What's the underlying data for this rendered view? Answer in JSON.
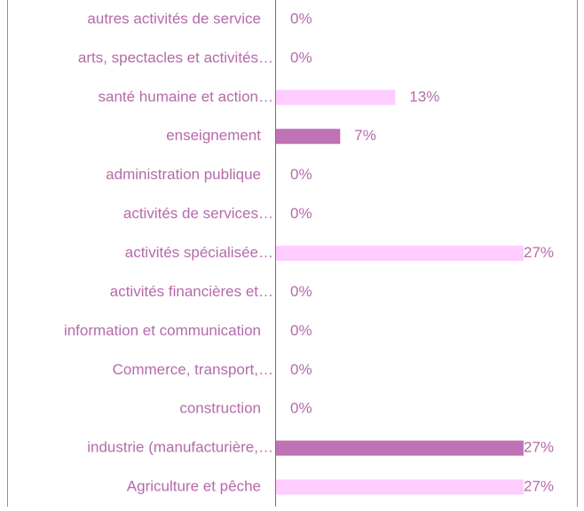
{
  "chart_data": {
    "type": "bar",
    "orientation": "horizontal",
    "categories": [
      "autres activités de service",
      "arts, spectacles et activités…",
      "santé humaine et action…",
      "enseignement",
      "administration publique",
      "activités de services…",
      "activités spécialisée…",
      "activités financières et…",
      "information et communication",
      "Commerce, transport,…",
      "construction",
      "industrie (manufacturière,…",
      "Agriculture et pêche"
    ],
    "values": [
      0,
      0,
      13,
      7,
      0,
      0,
      27,
      0,
      0,
      0,
      0,
      27,
      27
    ],
    "value_labels": [
      "0%",
      "0%",
      "13%",
      "7%",
      "0%",
      "0%",
      "27%",
      "0%",
      "0%",
      "0%",
      "0%",
      "27%",
      "27%"
    ],
    "colors": [
      "#ffccff",
      "#bf73b5",
      "#ffccff",
      "#bf73b5",
      "#ffccff",
      "#bf73b5",
      "#ffccff",
      "#bf73b5",
      "#ffccff",
      "#bf73b5",
      "#ffccff",
      "#bf73b5",
      "#ffccff"
    ]
  }
}
